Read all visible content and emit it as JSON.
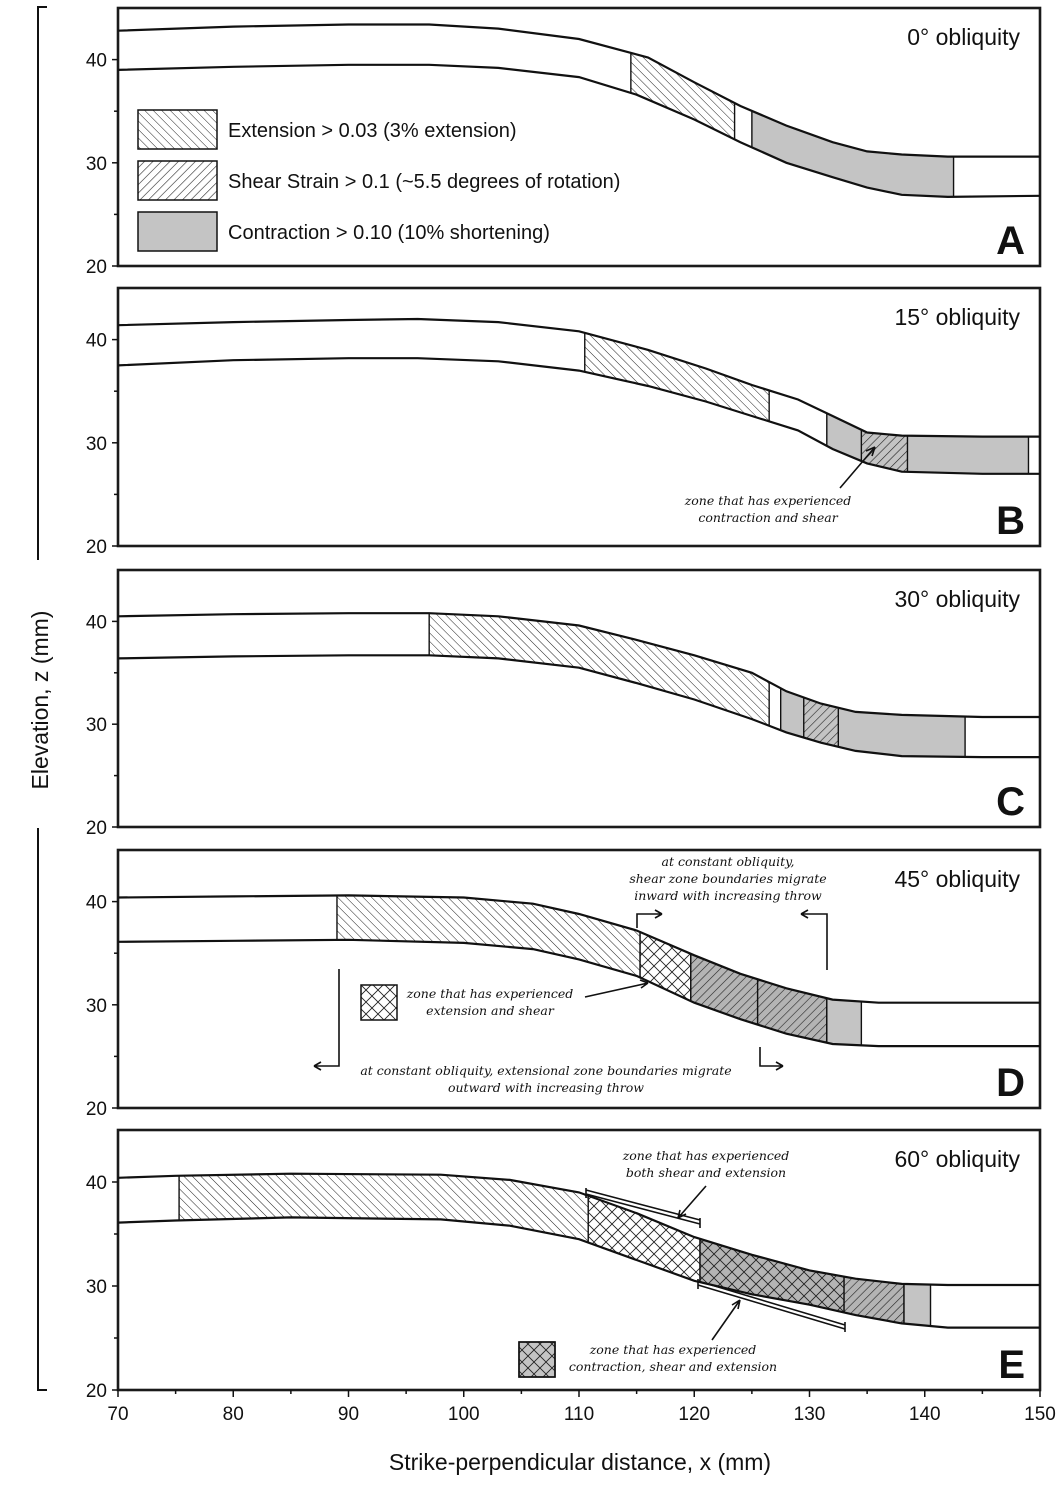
{
  "figure": {
    "y_axis_title": "Elevation, z (mm)",
    "x_axis_title": "Strike-perpendicular distance, x (mm)",
    "x_ticks": [
      "70",
      "80",
      "90",
      "100",
      "110",
      "120",
      "130",
      "140",
      "150"
    ],
    "z_ticks": [
      "20",
      "30",
      "40"
    ]
  },
  "legend": {
    "extension": "Extension > 0.03 (3% extension)",
    "shear": "Shear Strain > 0.1 (~5.5 degrees of rotation)",
    "contraction": "Contraction > 0.10 (10% shortening)"
  },
  "panels": [
    {
      "letter": "A",
      "title": "0° obliquity"
    },
    {
      "letter": "B",
      "title": "15° obliquity"
    },
    {
      "letter": "C",
      "title": "30° obliquity"
    },
    {
      "letter": "D",
      "title": "45° obliquity"
    },
    {
      "letter": "E",
      "title": "60° obliquity"
    }
  ],
  "annotations": {
    "b_note": [
      "zone that has experienced",
      "contraction and shear"
    ],
    "d_legend_note": [
      "zone that has experienced",
      "extension and shear"
    ],
    "d_top_note": [
      "at constant obliquity,",
      "shear zone boundaries migrate",
      "inward with increasing throw"
    ],
    "d_bottom_note": [
      "at constant obliquity, extensional zone boundaries migrate",
      "outward with increasing throw"
    ],
    "e_top_note": [
      "zone that has experienced",
      "both shear and extension"
    ],
    "e_bottom_note": [
      "zone that has experienced",
      "contraction, shear and extension"
    ]
  },
  "chart_data": {
    "type": "area",
    "x_range": [
      70,
      150
    ],
    "z_range": [
      20,
      45
    ],
    "xlabel": "Strike-perpendicular distance, x (mm)",
    "ylabel": "Elevation, z (mm)",
    "panels": [
      {
        "name": "0° obliquity",
        "top_surface": [
          [
            70,
            42.8
          ],
          [
            80,
            43.2
          ],
          [
            90,
            43.4
          ],
          [
            97,
            43.4
          ],
          [
            103,
            43.0
          ],
          [
            110,
            42.0
          ],
          [
            116,
            40.2
          ],
          [
            120,
            37.8
          ],
          [
            124,
            35.5
          ],
          [
            128,
            33.6
          ],
          [
            132,
            32.0
          ],
          [
            135,
            31.1
          ],
          [
            138,
            30.8
          ],
          [
            142,
            30.6
          ],
          [
            150,
            30.6
          ]
        ],
        "bottom_surface": [
          [
            70,
            39.0
          ],
          [
            80,
            39.3
          ],
          [
            90,
            39.5
          ],
          [
            97,
            39.5
          ],
          [
            103,
            39.2
          ],
          [
            110,
            38.3
          ],
          [
            115,
            36.6
          ],
          [
            120,
            34.2
          ],
          [
            124,
            32.0
          ],
          [
            128,
            30.0
          ],
          [
            132,
            28.6
          ],
          [
            135,
            27.6
          ],
          [
            138,
            26.9
          ],
          [
            142,
            26.7
          ],
          [
            150,
            26.8
          ]
        ],
        "zones": [
          {
            "type": "extension",
            "x": [
              114.5,
              123.5
            ]
          },
          {
            "type": "contraction",
            "x": [
              125,
              142.5
            ]
          }
        ]
      },
      {
        "name": "15° obliquity",
        "top_surface": [
          [
            70,
            41.4
          ],
          [
            80,
            41.7
          ],
          [
            90,
            41.9
          ],
          [
            96,
            42.0
          ],
          [
            103,
            41.7
          ],
          [
            110,
            40.8
          ],
          [
            116,
            39.0
          ],
          [
            121,
            37.2
          ],
          [
            125,
            35.6
          ],
          [
            129,
            34.2
          ],
          [
            132,
            32.6
          ],
          [
            135,
            31.0
          ],
          [
            138,
            30.7
          ],
          [
            145,
            30.6
          ],
          [
            150,
            30.6
          ]
        ],
        "bottom_surface": [
          [
            70,
            37.5
          ],
          [
            80,
            38.0
          ],
          [
            90,
            38.2
          ],
          [
            96,
            38.2
          ],
          [
            103,
            37.9
          ],
          [
            110,
            37.0
          ],
          [
            116,
            35.5
          ],
          [
            121,
            34.0
          ],
          [
            125,
            32.6
          ],
          [
            129,
            31.2
          ],
          [
            132,
            29.4
          ],
          [
            135,
            28.0
          ],
          [
            138,
            27.2
          ],
          [
            145,
            27.0
          ],
          [
            150,
            27.0
          ]
        ],
        "zones": [
          {
            "type": "extension",
            "x": [
              110.5,
              126.5
            ]
          },
          {
            "type": "contraction",
            "x": [
              131.5,
              149
            ]
          },
          {
            "type": "shear",
            "x": [
              134.5,
              138.5
            ]
          }
        ]
      },
      {
        "name": "30° obliquity",
        "top_surface": [
          [
            70,
            40.5
          ],
          [
            80,
            40.7
          ],
          [
            90,
            40.8
          ],
          [
            97,
            40.8
          ],
          [
            103,
            40.5
          ],
          [
            110,
            39.6
          ],
          [
            115,
            38.2
          ],
          [
            120,
            36.7
          ],
          [
            125,
            35.0
          ],
          [
            128,
            33.2
          ],
          [
            131,
            32.0
          ],
          [
            134,
            31.2
          ],
          [
            138,
            30.9
          ],
          [
            145,
            30.7
          ],
          [
            150,
            30.7
          ]
        ],
        "bottom_surface": [
          [
            70,
            36.4
          ],
          [
            80,
            36.6
          ],
          [
            90,
            36.7
          ],
          [
            97,
            36.7
          ],
          [
            103,
            36.4
          ],
          [
            110,
            35.5
          ],
          [
            115,
            34.0
          ],
          [
            120,
            32.4
          ],
          [
            125,
            30.5
          ],
          [
            128,
            29.2
          ],
          [
            131,
            28.2
          ],
          [
            134,
            27.4
          ],
          [
            138,
            26.9
          ],
          [
            145,
            26.8
          ],
          [
            150,
            26.8
          ]
        ],
        "zones": [
          {
            "type": "extension",
            "x": [
              97,
              126.5
            ]
          },
          {
            "type": "contraction",
            "x": [
              127.5,
              143.5
            ]
          },
          {
            "type": "shear",
            "x": [
              129.5,
              132.5
            ]
          }
        ]
      },
      {
        "name": "45° obliquity",
        "top_surface": [
          [
            70,
            40.4
          ],
          [
            80,
            40.5
          ],
          [
            90,
            40.6
          ],
          [
            100,
            40.4
          ],
          [
            106,
            39.8
          ],
          [
            110,
            38.8
          ],
          [
            115,
            37.2
          ],
          [
            120,
            34.8
          ],
          [
            124,
            33.0
          ],
          [
            128,
            31.6
          ],
          [
            132,
            30.5
          ],
          [
            136,
            30.2
          ],
          [
            142,
            30.2
          ],
          [
            150,
            30.2
          ]
        ],
        "bottom_surface": [
          [
            70,
            36.1
          ],
          [
            80,
            36.2
          ],
          [
            90,
            36.3
          ],
          [
            100,
            36.0
          ],
          [
            106,
            35.4
          ],
          [
            110,
            34.4
          ],
          [
            115,
            32.8
          ],
          [
            120,
            30.2
          ],
          [
            124,
            28.6
          ],
          [
            128,
            27.2
          ],
          [
            132,
            26.2
          ],
          [
            136,
            26.0
          ],
          [
            142,
            26.0
          ],
          [
            150,
            26.0
          ]
        ],
        "zones": [
          {
            "type": "extension",
            "x": [
              89,
              115.3
            ]
          },
          {
            "type": "extension+shear",
            "x": [
              115.3,
              119.7
            ]
          },
          {
            "type": "contraction+shear",
            "x": [
              119.7,
              125.5
            ]
          },
          {
            "type": "contraction+shear",
            "x": [
              125.5,
              131.5
            ]
          },
          {
            "type": "contraction",
            "x": [
              131.5,
              134.5
            ]
          }
        ]
      },
      {
        "name": "60° obliquity",
        "top_surface": [
          [
            70,
            40.4
          ],
          [
            75,
            40.6
          ],
          [
            85,
            40.8
          ],
          [
            98,
            40.7
          ],
          [
            104,
            40.2
          ],
          [
            110,
            39.0
          ],
          [
            115,
            37.0
          ],
          [
            120,
            34.7
          ],
          [
            125,
            33.0
          ],
          [
            130,
            31.5
          ],
          [
            134,
            30.7
          ],
          [
            138,
            30.2
          ],
          [
            142,
            30.1
          ],
          [
            150,
            30.1
          ]
        ],
        "bottom_surface": [
          [
            70,
            36.1
          ],
          [
            75,
            36.3
          ],
          [
            85,
            36.6
          ],
          [
            98,
            36.4
          ],
          [
            104,
            35.8
          ],
          [
            110,
            34.5
          ],
          [
            115,
            32.5
          ],
          [
            120,
            30.5
          ],
          [
            125,
            29.2
          ],
          [
            130,
            28.2
          ],
          [
            134,
            27.2
          ],
          [
            138,
            26.4
          ],
          [
            142,
            26.0
          ],
          [
            150,
            26.0
          ]
        ],
        "zones": [
          {
            "type": "extension",
            "x": [
              75.3,
              110.8
            ]
          },
          {
            "type": "extension+shear",
            "x": [
              110.8,
              120.5
            ]
          },
          {
            "type": "contraction+shear+extension",
            "x": [
              120.5,
              133
            ]
          },
          {
            "type": "contraction+shear",
            "x": [
              133,
              138.2
            ]
          },
          {
            "type": "contraction",
            "x": [
              138.2,
              140.5
            ]
          }
        ]
      }
    ]
  }
}
